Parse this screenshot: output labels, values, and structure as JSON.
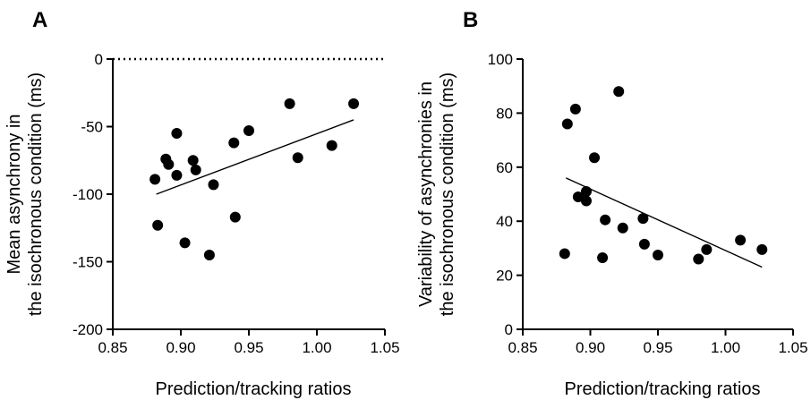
{
  "chart_data": [
    {
      "panel": "A",
      "type": "scatter",
      "xlabel": "Prediction/tracking ratios",
      "ylabel_lines": [
        "Mean asynchrony in",
        "the isochronous condition (ms)"
      ],
      "xlim": [
        0.85,
        1.05
      ],
      "ylim": [
        -200,
        0
      ],
      "xticks": [
        0.85,
        0.9,
        0.95,
        1.0,
        1.05
      ],
      "xtick_labels": [
        "0.85",
        "0.90",
        "0.95",
        "1.00",
        "1.05"
      ],
      "yticks": [
        0,
        -50,
        -100,
        -150,
        -200
      ],
      "ytick_labels": [
        "0",
        "-50",
        "-100",
        "-150",
        "-200"
      ],
      "reference_line_y": 0,
      "points": [
        {
          "x": 0.881,
          "y": -89
        },
        {
          "x": 0.883,
          "y": -123
        },
        {
          "x": 0.889,
          "y": -74
        },
        {
          "x": 0.891,
          "y": -78
        },
        {
          "x": 0.897,
          "y": -55
        },
        {
          "x": 0.897,
          "y": -86
        },
        {
          "x": 0.903,
          "y": -136
        },
        {
          "x": 0.909,
          "y": -75
        },
        {
          "x": 0.911,
          "y": -82
        },
        {
          "x": 0.921,
          "y": -145
        },
        {
          "x": 0.924,
          "y": -93
        },
        {
          "x": 0.939,
          "y": -62
        },
        {
          "x": 0.94,
          "y": -117
        },
        {
          "x": 0.95,
          "y": -53
        },
        {
          "x": 0.98,
          "y": -33
        },
        {
          "x": 0.986,
          "y": -73
        },
        {
          "x": 1.011,
          "y": -64
        },
        {
          "x": 1.027,
          "y": -33
        }
      ],
      "fit_line": {
        "x": [
          0.882,
          1.027
        ],
        "y": [
          -100,
          -45
        ]
      }
    },
    {
      "panel": "B",
      "type": "scatter",
      "xlabel": "Prediction/tracking ratios",
      "ylabel_lines": [
        "Variability of asynchronies in",
        "the isochronous condition (ms)"
      ],
      "xlim": [
        0.85,
        1.05
      ],
      "ylim": [
        0,
        100
      ],
      "xticks": [
        0.85,
        0.9,
        0.95,
        1.0,
        1.05
      ],
      "xtick_labels": [
        "0.85",
        "0.90",
        "0.95",
        "1.00",
        "1.05"
      ],
      "yticks": [
        0,
        20,
        40,
        60,
        80,
        100
      ],
      "ytick_labels": [
        "0",
        "20",
        "40",
        "60",
        "80",
        "100"
      ],
      "points": [
        {
          "x": 0.881,
          "y": 28
        },
        {
          "x": 0.883,
          "y": 76
        },
        {
          "x": 0.889,
          "y": 81.5
        },
        {
          "x": 0.891,
          "y": 49
        },
        {
          "x": 0.897,
          "y": 51
        },
        {
          "x": 0.897,
          "y": 47.5
        },
        {
          "x": 0.903,
          "y": 63.5
        },
        {
          "x": 0.909,
          "y": 26.5
        },
        {
          "x": 0.911,
          "y": 40.5
        },
        {
          "x": 0.921,
          "y": 88
        },
        {
          "x": 0.924,
          "y": 37.5
        },
        {
          "x": 0.939,
          "y": 41
        },
        {
          "x": 0.94,
          "y": 31.5
        },
        {
          "x": 0.95,
          "y": 27.5
        },
        {
          "x": 0.98,
          "y": 26
        },
        {
          "x": 0.986,
          "y": 29.5
        },
        {
          "x": 1.011,
          "y": 33
        },
        {
          "x": 1.027,
          "y": 29.5
        }
      ],
      "fit_line": {
        "x": [
          0.882,
          1.027
        ],
        "y": [
          56,
          23
        ]
      }
    }
  ]
}
